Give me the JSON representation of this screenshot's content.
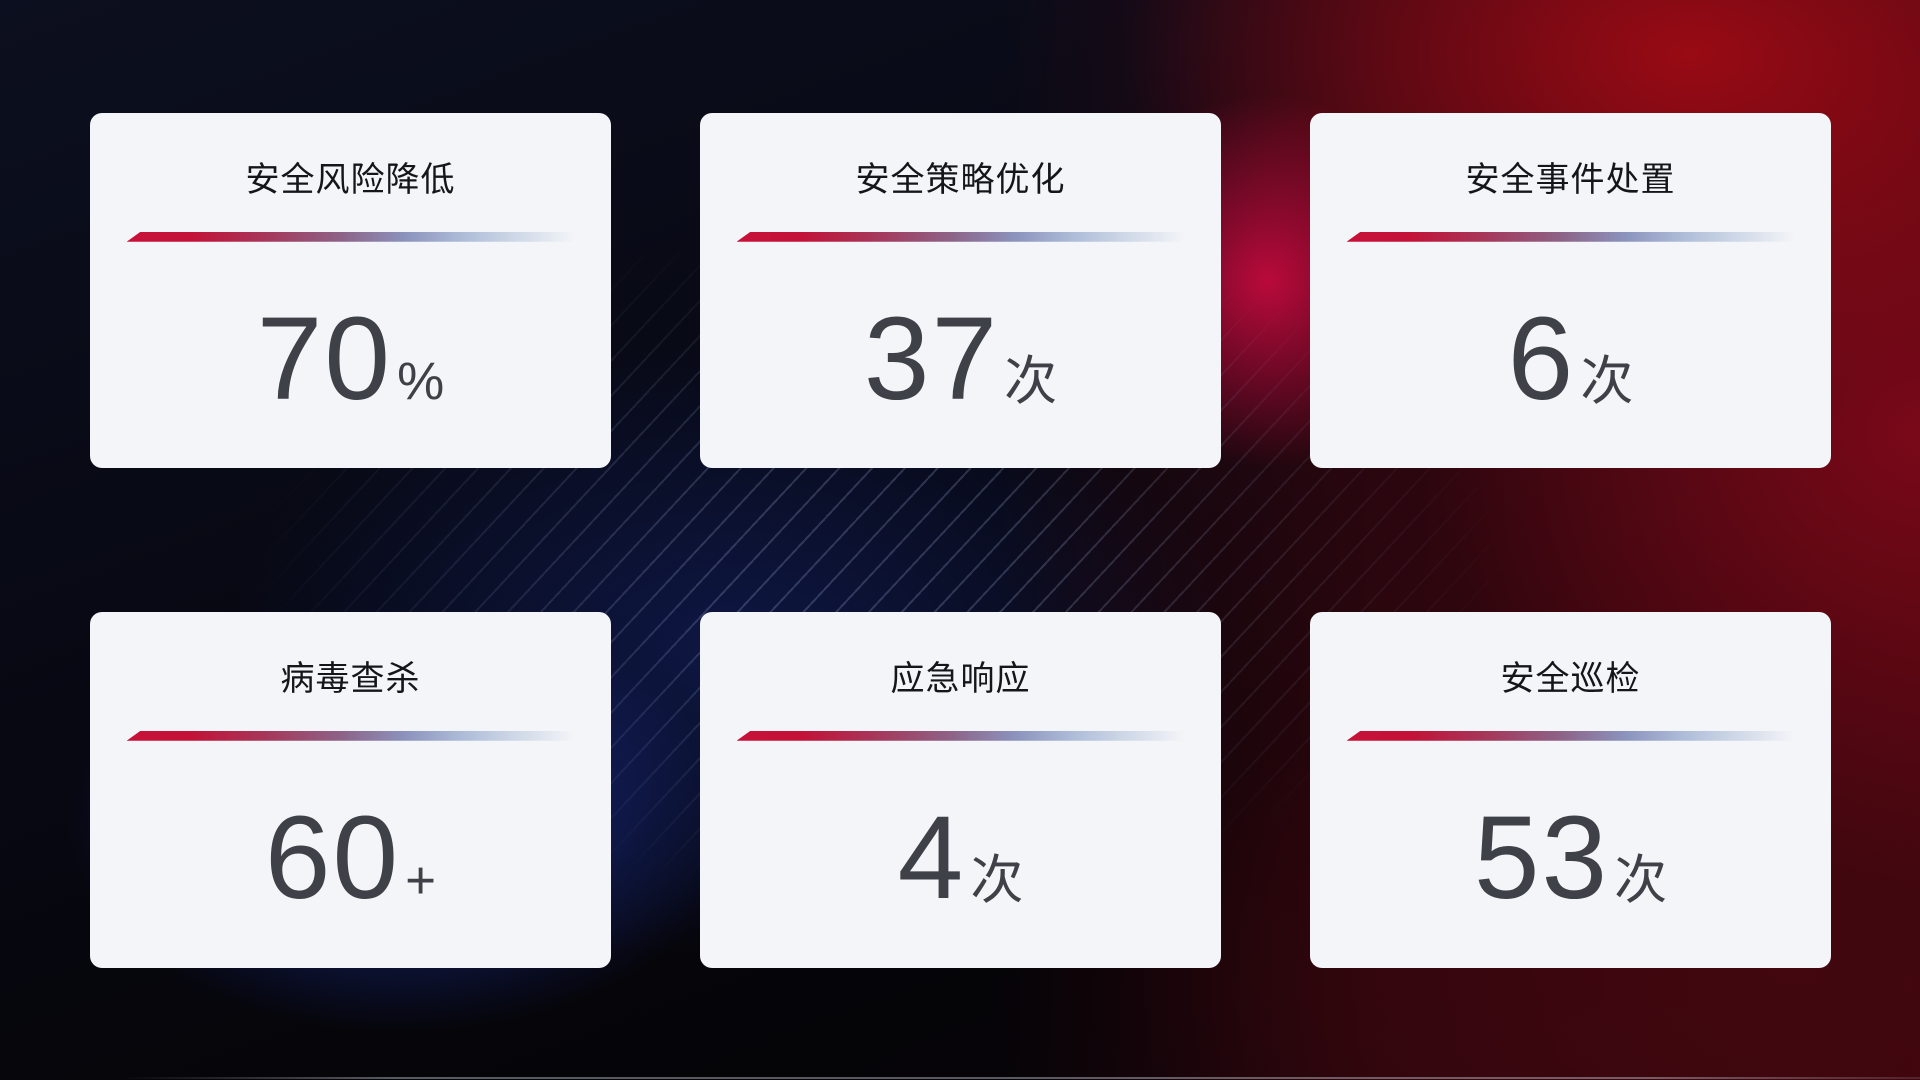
{
  "cards": [
    {
      "title": "安全风险降低",
      "value": "70",
      "unit": "%"
    },
    {
      "title": "安全策略优化",
      "value": "37",
      "unit": "次"
    },
    {
      "title": "安全事件处置",
      "value": "6",
      "unit": "次"
    },
    {
      "title": "病毒查杀",
      "value": "60",
      "unit": "+"
    },
    {
      "title": "应急响应",
      "value": "4",
      "unit": "次"
    },
    {
      "title": "安全巡检",
      "value": "53",
      "unit": "次"
    }
  ],
  "colors": {
    "card_background": "#f4f5f8",
    "title_text": "#14161a",
    "value_text": "#3e4147",
    "divider_gradient_start_red": "#c81138",
    "divider_gradient_end_blue": "#ccd6e6",
    "background_navy": "#0c0f1f",
    "background_deep_blue": "#192d8e",
    "background_dark_red": "#9e0a14",
    "background_crimson": "#c70a3e"
  }
}
